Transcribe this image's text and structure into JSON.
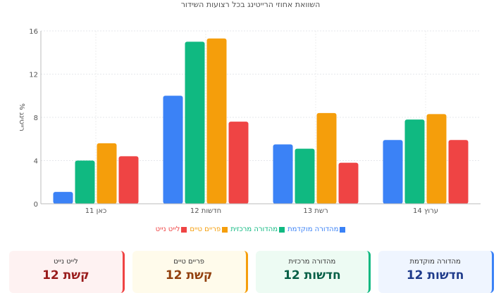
{
  "chart_data": {
    "type": "bar",
    "title": "השוואת אחוזי הרייטינג בכל רצועות השידור",
    "ylabel": "% רייטינג",
    "xlabel": "",
    "ylim": [
      0,
      16
    ],
    "yticks": [
      0,
      4,
      8,
      12,
      16
    ],
    "grid": true,
    "legend_position": "bottom",
    "categories": [
      "כאן 11",
      "חדשות 12",
      "רשת 13",
      "ערוץ 14"
    ],
    "series": [
      {
        "name": "מהדורה מוקדמת",
        "color": "#3b82f6",
        "values": [
          1.1,
          10.0,
          5.5,
          5.9
        ]
      },
      {
        "name": "מהדורה מרכזית",
        "color": "#10b981",
        "values": [
          4.0,
          15.0,
          5.1,
          7.8
        ]
      },
      {
        "name": "פריים טיים",
        "color": "#f59e0b",
        "values": [
          5.6,
          15.3,
          8.4,
          8.3
        ]
      },
      {
        "name": "לייט נייט",
        "color": "#ef4444",
        "values": [
          4.4,
          7.6,
          3.8,
          5.9
        ]
      }
    ]
  },
  "cards": [
    {
      "title": "מהדורה מוקדמת",
      "value": "חדשות 12",
      "color": "#3b82f6",
      "bg": "#eff5ff"
    },
    {
      "title": "מהדורה מרכזית",
      "value": "חדשות 12",
      "color": "#10b981",
      "bg": "#edfbf3"
    },
    {
      "title": "פריים טיים",
      "value": "קשת 12",
      "color": "#f59e0b",
      "bg": "#fffbeb"
    },
    {
      "title": "לייט נייט",
      "value": "קשת 12",
      "color": "#ef4444",
      "bg": "#fef2f2"
    }
  ]
}
